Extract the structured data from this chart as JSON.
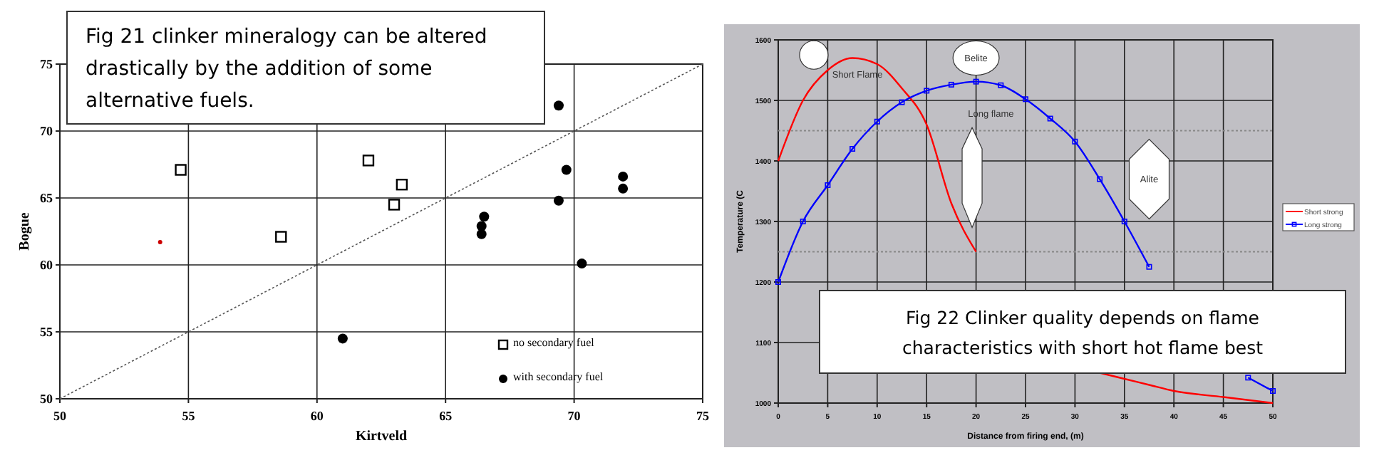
{
  "chart_data": [
    {
      "type": "scatter",
      "xlabel": "Kirtveld",
      "ylabel": "Bogue",
      "xlim": [
        50,
        75
      ],
      "ylim": [
        50,
        75
      ],
      "xticks": [
        50,
        55,
        60,
        65,
        70,
        75
      ],
      "yticks": [
        50,
        55,
        60,
        65,
        70,
        75
      ],
      "grid": true,
      "legend": "bottom right",
      "annotations": [
        "Fig 21 clinker mineralogy can be altered drastically by the addition of some alternative fuels."
      ],
      "series": [
        {
          "name": "no secondary fuel",
          "color": "#000000",
          "marker": "square",
          "x": [
            54.7,
            58.6,
            62,
            63,
            63.3
          ],
          "values": [
            67.1,
            62.1,
            67.8,
            64.5,
            66
          ]
        },
        {
          "name": "with secondary fuel",
          "color": "#000000",
          "marker": "circle",
          "x": [
            61,
            66.4,
            66.4,
            66.5,
            69.4,
            69.4,
            69.7,
            70.3,
            71.9,
            71.9
          ],
          "values": [
            54.5,
            62.3,
            62.9,
            63.6,
            71.9,
            64.8,
            67.1,
            60.1,
            66.6,
            65.7
          ]
        },
        {
          "color": "#cc0000",
          "marker": "circle",
          "x": [
            53.9
          ],
          "values": [
            61.7
          ]
        },
        {
          "type": "line",
          "color": "#555555",
          "marker": "none",
          "line_style": "dotted",
          "x": [
            50,
            75
          ],
          "values": [
            50,
            75
          ]
        }
      ]
    },
    {
      "type": "line",
      "xlabel": "Distance from firing end, (m)",
      "ylabel": "Temperature (C",
      "xlim": [
        0,
        50
      ],
      "ylim": [
        1000,
        1600
      ],
      "xticks": [
        0,
        5,
        10,
        15,
        20,
        25,
        30,
        35,
        40,
        45,
        50
      ],
      "yticks": [
        1000,
        1100,
        1200,
        1300,
        1400,
        1500,
        1600
      ],
      "grid": true,
      "legend": "right",
      "ref_lines": [
        {
          "axis": "y",
          "value": 1450,
          "color": "#888888",
          "line_style": "dotted"
        },
        {
          "axis": "y",
          "value": 1250,
          "color": "#888888",
          "line_style": "dotted"
        }
      ],
      "annotations": [
        "Short Flame",
        "Belite",
        "Long flame",
        "Alite",
        "Fig 22 Clinker quality depends on flame characteristics with short hot flame best"
      ],
      "series": [
        {
          "name": "Short strong",
          "color": "#ff0000",
          "marker": "none",
          "x": [
            0,
            2.5,
            5,
            7.5,
            10,
            12.5,
            15,
            17.5,
            20,
            22,
            22.5,
            25,
            27.5,
            30,
            32.5,
            35,
            37.5,
            40,
            45,
            50
          ],
          "values": [
            1400,
            1500,
            1550,
            1570,
            1560,
            1520,
            1460,
            1330,
            1250,
            null,
            null,
            null,
            null,
            null,
            1050,
            1040,
            1030,
            1020,
            1010,
            1000
          ]
        },
        {
          "name": "Long strong",
          "color": "#0000ff",
          "marker": "square",
          "x": [
            0,
            2.5,
            5,
            7.5,
            10,
            12.5,
            15,
            17.5,
            20,
            22.5,
            25,
            27.5,
            30,
            32.5,
            35,
            37.5,
            40,
            42.5,
            45,
            47.5,
            50
          ],
          "values": [
            1200,
            1300,
            1360,
            1420,
            1465,
            1497,
            1516,
            1526,
            1531,
            1525,
            1502,
            1470,
            1432,
            1370,
            1300,
            1225,
            null,
            null,
            null,
            1042,
            1020
          ]
        }
      ]
    }
  ]
}
